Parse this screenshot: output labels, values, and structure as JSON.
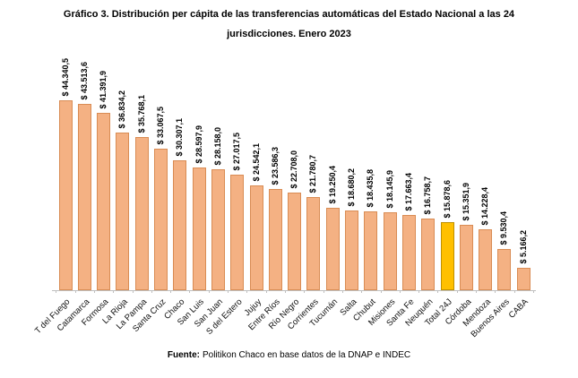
{
  "chart_data": {
    "type": "bar",
    "title_line1": "Gráfico 3. Distribución per cápita de las transferencias automáticas del Estado Nacional a las 24",
    "title_line2": "jurisdicciones. Enero 2023",
    "categories": [
      "T del Fuego",
      "Catamarca",
      "Formosa",
      "La Rioja",
      "La Pampa",
      "Santa Cruz",
      "Chaco",
      "San Luis",
      "San Juan",
      "S del Estero",
      "Jujuy",
      "Entre Ríos",
      "Río Negro",
      "Corrientes",
      "Tucumán",
      "Salta",
      "Chubut",
      "Misiones",
      "Santa Fe",
      "Neuquén",
      "Total 24J",
      "Córdoba",
      "Mendoza",
      "Buenos Aires",
      "CABA"
    ],
    "values": [
      44340.5,
      43513.6,
      41391.9,
      36834.2,
      35768.1,
      33067.5,
      30307.1,
      28597.9,
      28158.0,
      27017.5,
      24542.1,
      23586.3,
      22708.0,
      21780.7,
      19250.4,
      18680.2,
      18435.8,
      18145.9,
      17663.4,
      16758.7,
      15878.6,
      15351.9,
      14228.4,
      9530.4,
      5166.2
    ],
    "value_labels": [
      "$ 44.340,5",
      "$ 43.513,6",
      "$ 41.391,9",
      "$ 36.834,2",
      "$ 35.768,1",
      "$ 33.067,5",
      "$ 30.307,1",
      "$ 28.597,9",
      "$ 28.158,0",
      "$ 27.017,5",
      "$ 24.542,1",
      "$ 23.586,3",
      "$ 22.708,0",
      "$ 21.780,7",
      "$ 19.250,4",
      "$ 18.680,2",
      "$ 18.435,8",
      "$ 18.145,9",
      "$ 17.663,4",
      "$ 16.758,7",
      "$ 15.878,6",
      "$ 15.351,9",
      "$ 14.228,4",
      "$ 9.530,4",
      "$ 5.166,2"
    ],
    "highlight_category": "Total 24J",
    "highlight_index": 20,
    "xlabel": "",
    "ylabel": "",
    "ylim": [
      0,
      44340.5
    ],
    "grid": false,
    "legend": "none",
    "colors": {
      "bar_fill": "#F4B183",
      "bar_border": "#D98C54",
      "highlight_fill": "#FFC000",
      "highlight_border": "#BF9000",
      "axis": "#BFBFBF",
      "text": "#000000"
    },
    "source_prefix": "Fuente:",
    "source_text": "Politikon Chaco en base datos de la DNAP e INDEC"
  }
}
